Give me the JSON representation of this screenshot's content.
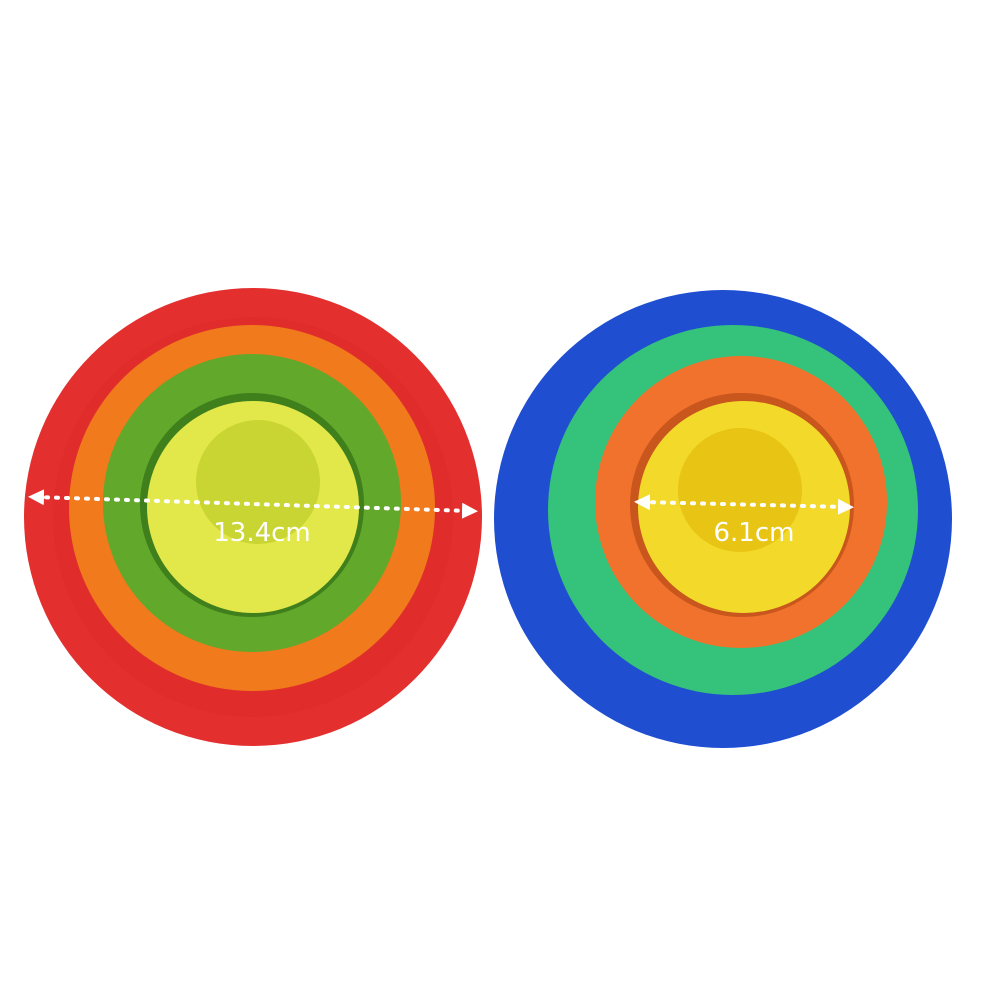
{
  "left_set": {
    "measurement": "13.4cm",
    "colors": [
      "#e3302f",
      "#f07a1c",
      "#62a82a",
      "#e2e84a"
    ]
  },
  "right_set": {
    "measurement": "6.1cm",
    "colors": [
      "#1f4fd0",
      "#35c27a",
      "#f0722c",
      "#f2d92a"
    ]
  }
}
